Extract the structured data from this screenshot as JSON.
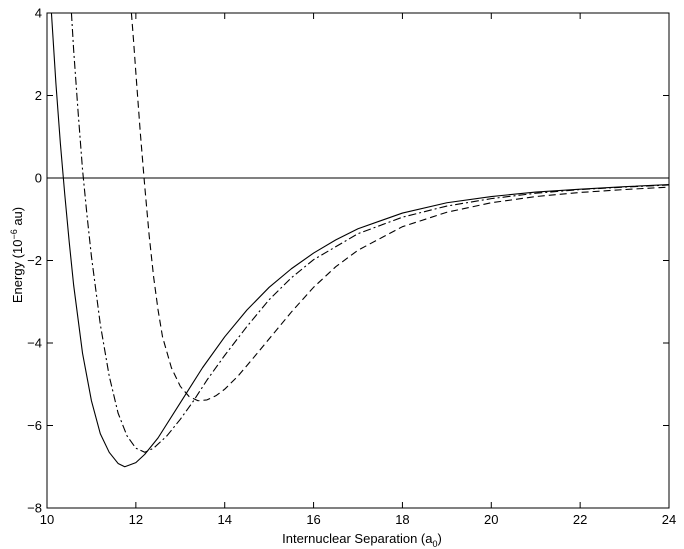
{
  "chart_data": {
    "type": "line",
    "title": "",
    "xlabel": {
      "text": "Internuclear Separation (a",
      "subscript": "0",
      "suffix": ")"
    },
    "ylabel": {
      "prefix": "Energy (10",
      "superscript": "−6",
      "suffix": " au)"
    },
    "xlim": [
      10,
      24
    ],
    "ylim": [
      -8,
      4
    ],
    "xticks": [
      10,
      12,
      14,
      16,
      18,
      20,
      22,
      24
    ],
    "yticks": [
      -8,
      -6,
      -4,
      -2,
      0,
      2,
      4
    ],
    "xtick_labels": [
      "10",
      "12",
      "14",
      "16",
      "18",
      "20",
      "22",
      "24"
    ],
    "ytick_labels": [
      "−8",
      "−6",
      "−4",
      "−2",
      "0",
      "2",
      "4"
    ],
    "grid": false,
    "legend": "none",
    "reference_line": {
      "y": 0
    },
    "series": [
      {
        "style": "solid",
        "x": [
          10.1,
          10.2,
          10.3,
          10.4,
          10.5,
          10.6,
          10.8,
          11.0,
          11.2,
          11.4,
          11.6,
          11.75,
          12.0,
          12.2,
          12.5,
          13.0,
          13.5,
          14.0,
          14.5,
          15.0,
          15.5,
          16.0,
          16.5,
          17.0,
          18.0,
          19.0,
          20.0,
          21.0,
          22.0,
          23.0,
          24.0
        ],
        "y": [
          4.0,
          2.3,
          0.85,
          -0.4,
          -1.55,
          -2.6,
          -4.25,
          -5.4,
          -6.2,
          -6.65,
          -6.92,
          -7.0,
          -6.9,
          -6.7,
          -6.3,
          -5.45,
          -4.6,
          -3.85,
          -3.2,
          -2.65,
          -2.2,
          -1.82,
          -1.5,
          -1.23,
          -0.85,
          -0.6,
          -0.45,
          -0.34,
          -0.27,
          -0.21,
          -0.16
        ]
      },
      {
        "style": "dash-dot",
        "x": [
          10.55,
          10.6,
          10.7,
          10.8,
          10.9,
          11.0,
          11.2,
          11.4,
          11.6,
          11.8,
          12.0,
          12.2,
          12.4,
          12.7,
          13.0,
          13.3,
          13.6,
          14.0,
          14.5,
          15.0,
          15.5,
          16.0,
          17.0,
          18.0,
          19.0,
          20.0,
          21.0,
          22.0,
          23.0,
          24.0
        ],
        "y": [
          4.0,
          3.1,
          1.6,
          0.2,
          -0.9,
          -1.9,
          -3.55,
          -4.8,
          -5.7,
          -6.25,
          -6.55,
          -6.65,
          -6.55,
          -6.25,
          -5.85,
          -5.4,
          -4.9,
          -4.3,
          -3.6,
          -2.95,
          -2.42,
          -1.98,
          -1.35,
          -0.95,
          -0.68,
          -0.5,
          -0.37,
          -0.28,
          -0.22,
          -0.17
        ]
      },
      {
        "style": "dashed",
        "x": [
          11.9,
          11.95,
          12.0,
          12.1,
          12.2,
          12.3,
          12.4,
          12.5,
          12.6,
          12.8,
          13.0,
          13.2,
          13.4,
          13.6,
          13.8,
          14.0,
          14.3,
          14.6,
          15.0,
          15.5,
          16.0,
          16.5,
          17.0,
          18.0,
          19.0,
          20.0,
          21.0,
          22.0,
          23.0,
          24.0
        ],
        "y": [
          4.0,
          3.3,
          2.55,
          1.1,
          -0.2,
          -1.4,
          -2.4,
          -3.2,
          -3.85,
          -4.6,
          -5.05,
          -5.3,
          -5.4,
          -5.38,
          -5.28,
          -5.12,
          -4.8,
          -4.42,
          -3.9,
          -3.25,
          -2.65,
          -2.15,
          -1.75,
          -1.18,
          -0.83,
          -0.6,
          -0.45,
          -0.35,
          -0.28,
          -0.22
        ]
      }
    ]
  }
}
